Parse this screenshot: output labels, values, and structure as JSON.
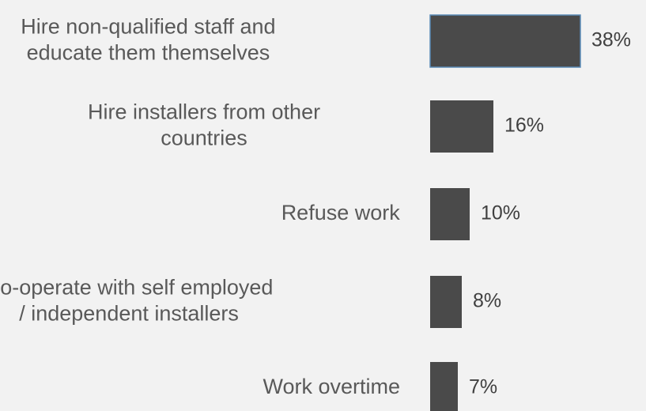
{
  "chart_data": {
    "type": "bar",
    "orientation": "horizontal",
    "categories": [
      [
        "Hire non-qualified staff and",
        "educate them themselves"
      ],
      [
        "Hire installers from other",
        "countries"
      ],
      [
        "Refuse work"
      ],
      [
        "Co-operate with self employed",
        "/ independent installers"
      ],
      [
        "Work overtime"
      ]
    ],
    "values": [
      38,
      16,
      10,
      8,
      7
    ],
    "value_labels": [
      "38%",
      "16%",
      "10%",
      "8%",
      "7%"
    ],
    "unit": "%",
    "xlim": [
      0,
      38
    ],
    "title": "",
    "xlabel": "",
    "ylabel": "",
    "grid": false,
    "legend": "none",
    "colors": {
      "bar": "#4a4a4a",
      "highlight_outline": "#5b8bb8",
      "category_text": "#595959",
      "value_text": "#404040",
      "background": "#f2f2f2"
    },
    "highlighted_index": 0
  }
}
